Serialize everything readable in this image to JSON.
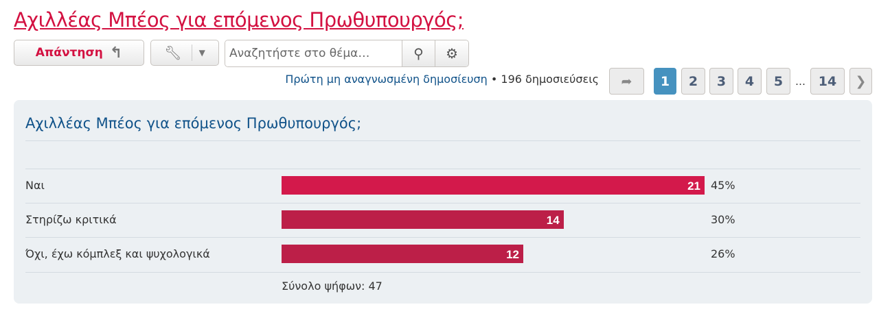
{
  "topic_title": "Αχιλλέας Μπέος για επόμενος Πρωθυπουργός;",
  "toolbar": {
    "reply_label": "Απάντηση",
    "search_placeholder": "Αναζητήστε στο θέμα…"
  },
  "meta": {
    "first_unread": "Πρώτη μη αναγνωσμένη δημοσίευση",
    "separator": " • ",
    "post_count": "196 δημοσιεύσεις"
  },
  "pagination": {
    "pages": [
      "1",
      "2",
      "3",
      "4",
      "5",
      "14"
    ],
    "current": "1",
    "ellipsis": "…"
  },
  "poll": {
    "title": "Αχιλλέας Μπέος για επόμενος Πρωθυπουργός;",
    "options": [
      {
        "label": "Ναι",
        "votes": "21",
        "percent": "45%",
        "color": "#d3194b"
      },
      {
        "label": "Στηρίζω κριτικά",
        "votes": "14",
        "percent": "30%",
        "color": "#bc1f48"
      },
      {
        "label": "Όχι, έχω κόμπλεξ και ψυχολογικά",
        "votes": "12",
        "percent": "26%",
        "color": "#bc1f48"
      }
    ],
    "total": "Σύνολο ψήφων: 47"
  }
}
